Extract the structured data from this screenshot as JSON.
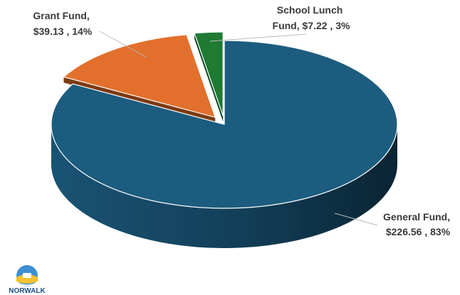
{
  "chart_data": {
    "type": "pie",
    "style": "3d-exploded",
    "legend": "none",
    "categories": [
      "General Fund",
      "Grant Fund",
      "School Lunch Fund"
    ],
    "values": [
      226.56,
      39.13,
      7.22
    ],
    "percents": [
      83,
      14,
      3
    ],
    "colors": [
      "#1c5c7e",
      "#e2702c",
      "#1f7a34"
    ],
    "labels": [
      {
        "line1": "General Fund,",
        "line2": "$226.56 , 83%"
      },
      {
        "line1": "Grant Fund,",
        "line2": "$39.13 , 14%"
      },
      {
        "line1": "School Lunch",
        "line2": "Fund, $7.22 , 3%"
      }
    ]
  },
  "logo": {
    "text": "NORWALK"
  }
}
